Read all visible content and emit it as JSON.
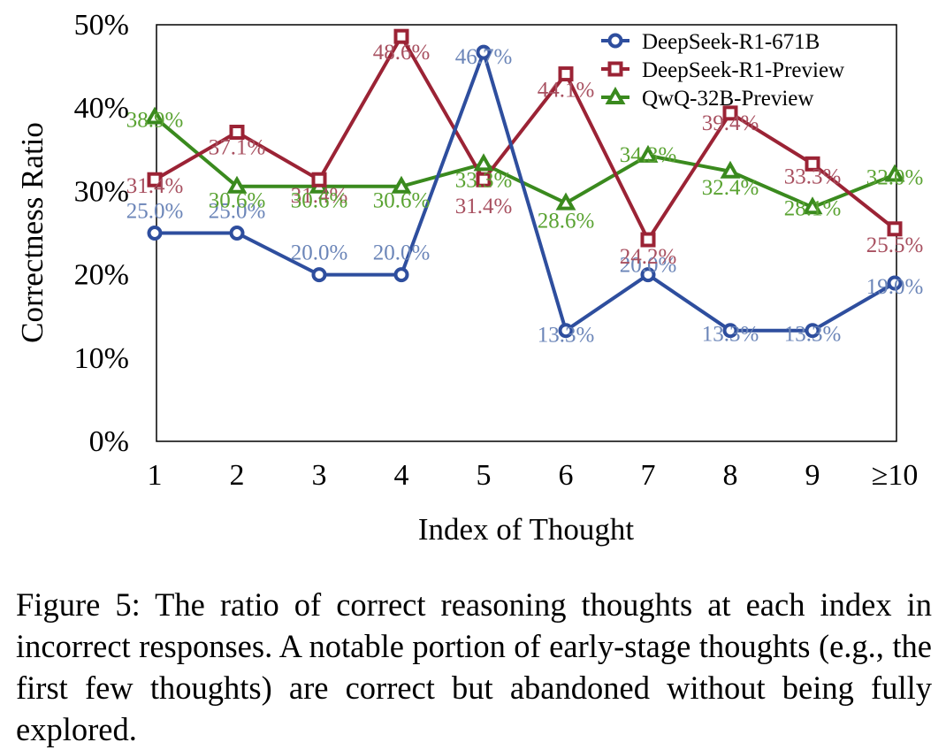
{
  "chart_data": {
    "type": "line",
    "title": "",
    "xlabel": "Index of Thought",
    "ylabel": "Correctness Ratio",
    "categories": [
      "1",
      "2",
      "3",
      "4",
      "5",
      "6",
      "7",
      "8",
      "9",
      "≥10"
    ],
    "ylim": [
      0,
      50
    ],
    "yticks": [
      0,
      10,
      20,
      30,
      40,
      50
    ],
    "ytick_labels": [
      "0%",
      "10%",
      "20%",
      "30%",
      "40%",
      "50%"
    ],
    "grid": false,
    "legend_position": "top-right",
    "series": [
      {
        "name": "DeepSeek-R1-671B",
        "color": "#2E4E9E",
        "label_color": "#6B85B8",
        "marker": "circle",
        "values": [
          25.0,
          25.0,
          20.0,
          20.0,
          46.7,
          13.3,
          20.0,
          13.3,
          13.3,
          19.0
        ],
        "labels": [
          "25.0%",
          "25.0%",
          "20.0%",
          "20.0%",
          "46.7%",
          "13.3%",
          "20.0%",
          "13.3%",
          "13.3%",
          "19.0%"
        ]
      },
      {
        "name": "DeepSeek-R1-Preview",
        "color": "#9B2335",
        "label_color": "#A85060",
        "marker": "square",
        "values": [
          31.4,
          37.1,
          31.4,
          48.6,
          31.4,
          44.1,
          24.2,
          39.4,
          33.3,
          25.5
        ],
        "labels": [
          "31.4%",
          "37.1%",
          "31.4%",
          "48.6%",
          "31.4%",
          "44.1%",
          "24.2%",
          "39.4%",
          "33.3%",
          "25.5%"
        ]
      },
      {
        "name": "QwQ-32B-Preview",
        "color": "#3A8A1E",
        "label_color": "#5AA332",
        "marker": "triangle",
        "values": [
          38.9,
          30.6,
          30.6,
          30.6,
          33.3,
          28.6,
          34.3,
          32.4,
          28.1,
          32.0
        ],
        "labels": [
          "38.9%",
          "30.6%",
          "30.6%",
          "30.6%",
          "33.3%",
          "28.6%",
          "34.3%",
          "32.4%",
          "28.1%",
          "32.0%"
        ]
      }
    ]
  },
  "caption": "Figure 5: The ratio of correct reasoning thoughts at each index in incorrect responses. A notable portion of early-stage thoughts (e.g., the first few thoughts) are correct but abandoned without being fully explored."
}
